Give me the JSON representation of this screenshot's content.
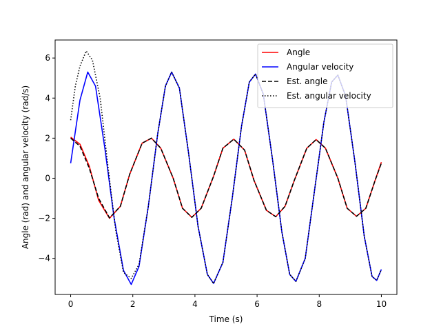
{
  "chart_data": {
    "type": "line",
    "title": "",
    "xlabel": "Time (s)",
    "ylabel": "Angle (rad) and angular velocity (rad/s)",
    "xlim": [
      -0.5,
      10.5
    ],
    "ylim": [
      -5.8,
      6.9
    ],
    "xticks": [
      0,
      2,
      4,
      6,
      8,
      10
    ],
    "xtick_labels": [
      "0",
      "2",
      "4",
      "6",
      "8",
      "10"
    ],
    "yticks": [
      -4,
      -2,
      0,
      2,
      4,
      6
    ],
    "ytick_labels": [
      "−4",
      "−2",
      "0",
      "2",
      "4",
      "6"
    ],
    "grid": false,
    "legend_position": "top-right",
    "series": [
      {
        "name": "Angle",
        "color": "#ff0000",
        "style": "solid",
        "points": [
          [
            0,
            2.05
          ],
          [
            0.3,
            1.7
          ],
          [
            0.6,
            0.6
          ],
          [
            0.9,
            -1.1
          ],
          [
            1.25,
            -2.0
          ],
          [
            1.6,
            -1.4
          ],
          [
            1.9,
            0.2
          ],
          [
            2.3,
            1.75
          ],
          [
            2.6,
            2.0
          ],
          [
            2.9,
            1.5
          ],
          [
            3.3,
            0.0
          ],
          [
            3.6,
            -1.5
          ],
          [
            3.9,
            -1.95
          ],
          [
            4.2,
            -1.5
          ],
          [
            4.6,
            0.1
          ],
          [
            4.9,
            1.5
          ],
          [
            5.25,
            1.95
          ],
          [
            5.6,
            1.4
          ],
          [
            5.9,
            -0.1
          ],
          [
            6.3,
            -1.6
          ],
          [
            6.6,
            -1.92
          ],
          [
            6.9,
            -1.4
          ],
          [
            7.2,
            -0.1
          ],
          [
            7.6,
            1.5
          ],
          [
            7.9,
            1.93
          ],
          [
            8.2,
            1.5
          ],
          [
            8.6,
            0.0
          ],
          [
            8.9,
            -1.5
          ],
          [
            9.2,
            -1.9
          ],
          [
            9.5,
            -1.5
          ],
          [
            9.8,
            -0.1
          ],
          [
            10,
            0.8
          ]
        ]
      },
      {
        "name": "Angular velocity",
        "color": "#0000ff",
        "style": "solid",
        "points": [
          [
            0,
            0.75
          ],
          [
            0.3,
            3.9
          ],
          [
            0.55,
            5.3
          ],
          [
            0.8,
            4.6
          ],
          [
            1.1,
            1.5
          ],
          [
            1.4,
            -2.0
          ],
          [
            1.7,
            -4.6
          ],
          [
            1.95,
            -5.3
          ],
          [
            2.2,
            -4.4
          ],
          [
            2.5,
            -1.4
          ],
          [
            2.8,
            2.2
          ],
          [
            3.05,
            4.6
          ],
          [
            3.25,
            5.3
          ],
          [
            3.5,
            4.5
          ],
          [
            3.8,
            1.2
          ],
          [
            4.1,
            -2.4
          ],
          [
            4.4,
            -4.8
          ],
          [
            4.6,
            -5.25
          ],
          [
            4.9,
            -4.2
          ],
          [
            5.2,
            -1.0
          ],
          [
            5.5,
            2.6
          ],
          [
            5.75,
            4.8
          ],
          [
            5.95,
            5.2
          ],
          [
            6.2,
            4.2
          ],
          [
            6.5,
            0.9
          ],
          [
            6.8,
            -2.7
          ],
          [
            7.05,
            -4.8
          ],
          [
            7.25,
            -5.15
          ],
          [
            7.55,
            -4.0
          ],
          [
            7.85,
            -0.6
          ],
          [
            8.15,
            2.8
          ],
          [
            8.4,
            4.8
          ],
          [
            8.6,
            5.15
          ],
          [
            8.85,
            4.1
          ],
          [
            9.15,
            0.8
          ],
          [
            9.45,
            -2.9
          ],
          [
            9.7,
            -4.9
          ],
          [
            9.85,
            -5.1
          ],
          [
            10,
            -4.55
          ]
        ]
      },
      {
        "name": "Est. angle",
        "color": "#000000",
        "style": "dashed",
        "points": [
          [
            0,
            2.0
          ],
          [
            0.3,
            1.6
          ],
          [
            0.6,
            0.5
          ],
          [
            0.9,
            -1.0
          ],
          [
            1.25,
            -1.98
          ],
          [
            1.6,
            -1.4
          ],
          [
            1.9,
            0.2
          ],
          [
            2.3,
            1.75
          ],
          [
            2.6,
            2.0
          ],
          [
            2.9,
            1.5
          ],
          [
            3.3,
            0.0
          ],
          [
            3.6,
            -1.5
          ],
          [
            3.9,
            -1.95
          ],
          [
            4.2,
            -1.5
          ],
          [
            4.6,
            0.1
          ],
          [
            4.9,
            1.5
          ],
          [
            5.25,
            1.95
          ],
          [
            5.6,
            1.4
          ],
          [
            5.9,
            -0.1
          ],
          [
            6.3,
            -1.6
          ],
          [
            6.6,
            -1.92
          ],
          [
            6.9,
            -1.4
          ],
          [
            7.2,
            -0.1
          ],
          [
            7.6,
            1.5
          ],
          [
            7.9,
            1.93
          ],
          [
            8.2,
            1.5
          ],
          [
            8.6,
            0.0
          ],
          [
            8.9,
            -1.5
          ],
          [
            9.2,
            -1.9
          ],
          [
            9.5,
            -1.5
          ],
          [
            9.8,
            -0.1
          ],
          [
            10,
            0.75
          ]
        ]
      },
      {
        "name": "Est. angular velocity",
        "color": "#000000",
        "style": "dotted",
        "points": [
          [
            0,
            2.9
          ],
          [
            0.15,
            4.6
          ],
          [
            0.3,
            5.6
          ],
          [
            0.5,
            6.35
          ],
          [
            0.7,
            5.9
          ],
          [
            0.95,
            4.0
          ],
          [
            1.2,
            0.6
          ],
          [
            1.45,
            -2.6
          ],
          [
            1.7,
            -4.7
          ],
          [
            1.95,
            -5.0
          ],
          [
            2.2,
            -4.3
          ],
          [
            2.5,
            -1.4
          ],
          [
            2.8,
            2.2
          ],
          [
            3.05,
            4.6
          ],
          [
            3.25,
            5.3
          ],
          [
            3.5,
            4.5
          ],
          [
            3.8,
            1.2
          ],
          [
            4.1,
            -2.4
          ],
          [
            4.4,
            -4.8
          ],
          [
            4.6,
            -5.25
          ],
          [
            4.9,
            -4.2
          ],
          [
            5.2,
            -1.0
          ],
          [
            5.5,
            2.6
          ],
          [
            5.75,
            4.8
          ],
          [
            5.95,
            5.2
          ],
          [
            6.2,
            4.2
          ],
          [
            6.5,
            0.9
          ],
          [
            6.8,
            -2.7
          ],
          [
            7.05,
            -4.8
          ],
          [
            7.25,
            -5.15
          ],
          [
            7.55,
            -4.0
          ],
          [
            7.85,
            -0.6
          ],
          [
            8.15,
            2.8
          ],
          [
            8.4,
            4.8
          ],
          [
            8.6,
            5.15
          ],
          [
            8.85,
            4.1
          ],
          [
            9.15,
            0.8
          ],
          [
            9.45,
            -2.9
          ],
          [
            9.7,
            -4.9
          ],
          [
            9.85,
            -5.1
          ],
          [
            10,
            -4.55
          ]
        ]
      }
    ]
  }
}
